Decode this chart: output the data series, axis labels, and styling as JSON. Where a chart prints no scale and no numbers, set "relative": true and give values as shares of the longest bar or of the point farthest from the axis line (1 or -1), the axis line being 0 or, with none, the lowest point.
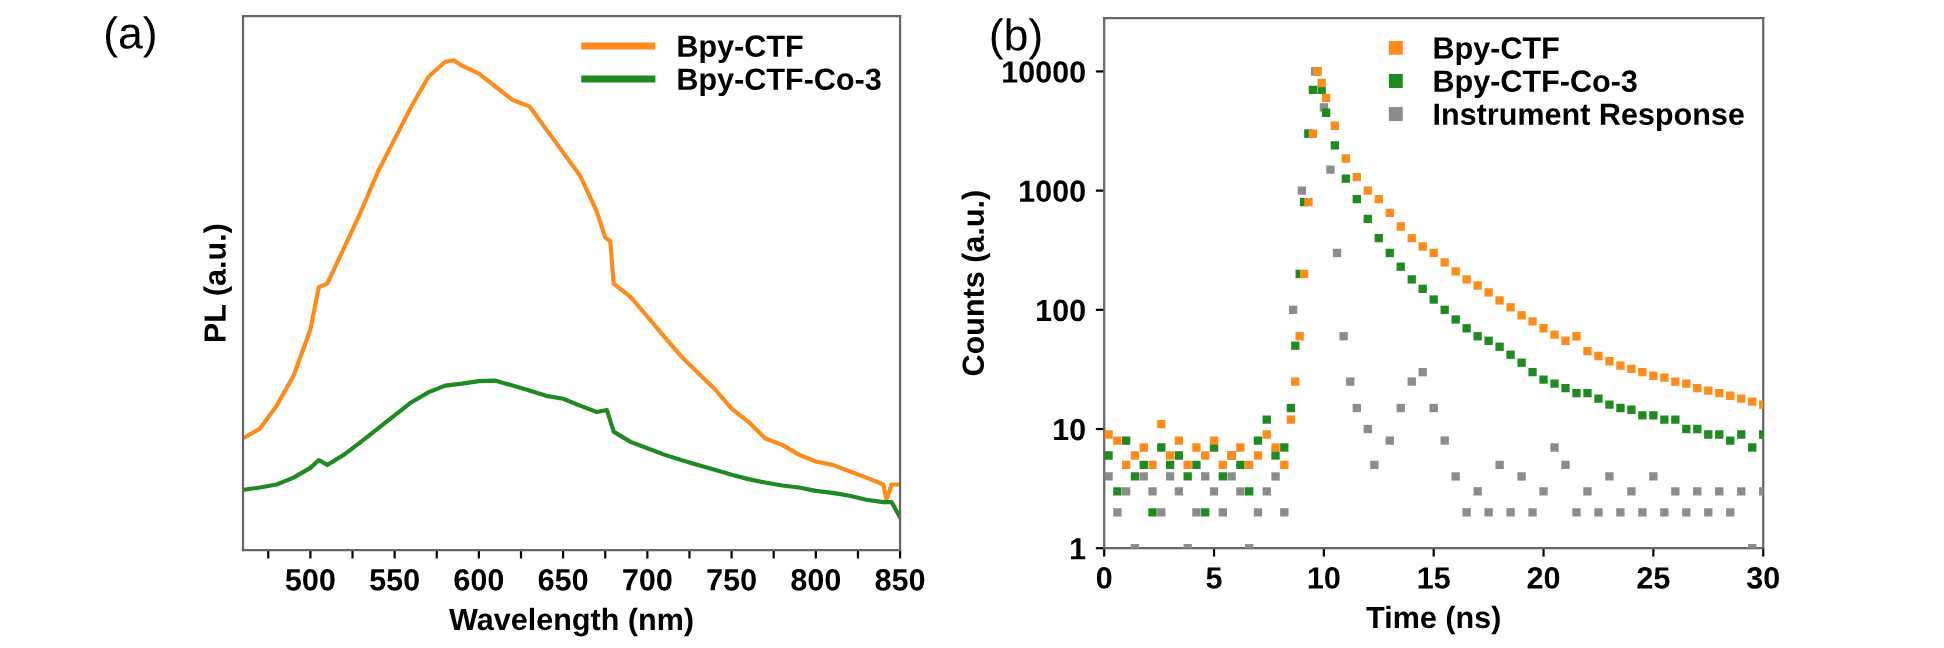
{
  "chart_data": [
    {
      "type": "line",
      "relative": true,
      "xlabel": "Wavelength (nm)",
      "ylabel": "PL (a.u.)",
      "annotations": [
        "(a)"
      ],
      "legend": "top right",
      "tick_labels": "x",
      "grid": false,
      "xlim": [
        460,
        850
      ],
      "xticks": [
        {
          "value": 475,
          "label": null
        },
        500,
        {
          "value": 525,
          "label": null
        },
        550,
        {
          "value": 575,
          "label": null
        },
        600,
        {
          "value": 625,
          "label": null
        },
        650,
        {
          "value": 675,
          "label": null
        },
        700,
        {
          "value": 725,
          "label": null
        },
        750,
        {
          "value": 775,
          "label": null
        },
        800,
        {
          "value": 825,
          "label": null
        },
        850
      ],
      "series": [
        {
          "name": "Bpy-CTF",
          "color": "#ff8c1a",
          "x": [
            460,
            470,
            480,
            490,
            500,
            505,
            510,
            520,
            530,
            540,
            550,
            560,
            570,
            580,
            585,
            590,
            600,
            610,
            620,
            630,
            640,
            650,
            660,
            670,
            675,
            678,
            680,
            690,
            700,
            710,
            720,
            730,
            740,
            750,
            760,
            770,
            780,
            790,
            800,
            810,
            820,
            830,
            840,
            842,
            845,
            850
          ],
          "values": [
            0.228,
            0.248,
            0.295,
            0.356,
            0.45,
            0.537,
            0.544,
            0.617,
            0.691,
            0.772,
            0.839,
            0.906,
            0.966,
            0.997,
            1.0,
            0.989,
            0.973,
            0.946,
            0.919,
            0.906,
            0.859,
            0.812,
            0.765,
            0.691,
            0.638,
            0.631,
            0.544,
            0.517,
            0.477,
            0.436,
            0.396,
            0.362,
            0.329,
            0.289,
            0.262,
            0.228,
            0.215,
            0.195,
            0.181,
            0.174,
            0.161,
            0.148,
            0.134,
            0.103,
            0.134,
            0.134
          ]
        },
        {
          "name": "Bpy-CTF-Co-3",
          "color": "#1f8a1f",
          "x": [
            460,
            470,
            480,
            490,
            500,
            505,
            510,
            520,
            530,
            540,
            550,
            560,
            570,
            580,
            590,
            600,
            610,
            620,
            630,
            640,
            650,
            660,
            670,
            676,
            680,
            690,
            700,
            710,
            720,
            730,
            740,
            750,
            760,
            770,
            780,
            790,
            800,
            810,
            820,
            830,
            840,
            845,
            850
          ],
          "values": [
            0.123,
            0.128,
            0.134,
            0.148,
            0.168,
            0.184,
            0.174,
            0.195,
            0.221,
            0.248,
            0.275,
            0.302,
            0.322,
            0.336,
            0.34,
            0.345,
            0.346,
            0.336,
            0.326,
            0.315,
            0.309,
            0.295,
            0.282,
            0.286,
            0.242,
            0.221,
            0.208,
            0.195,
            0.184,
            0.174,
            0.164,
            0.154,
            0.145,
            0.138,
            0.132,
            0.128,
            0.121,
            0.117,
            0.111,
            0.103,
            0.098,
            0.098,
            0.067
          ]
        }
      ]
    },
    {
      "type": "scatter",
      "xlabel": "Time (ns)",
      "ylabel": "Counts (a.u.)",
      "annotations": [
        "(b)"
      ],
      "legend": "top right",
      "log": "y",
      "marker": "square",
      "grid": false,
      "xlim": [
        0,
        30
      ],
      "xticks": [
        0,
        5,
        10,
        15,
        20,
        25,
        30
      ],
      "ylim": [
        1,
        28000
      ],
      "yticks": [
        1,
        10,
        100,
        1000,
        10000
      ],
      "series": [
        {
          "name": "Bpy-CTF",
          "color": "#ff8c1a",
          "x": [
            0.2,
            0.6,
            1.0,
            1.4,
            1.8,
            2.2,
            2.6,
            3.0,
            3.4,
            3.8,
            4.2,
            4.6,
            5.0,
            5.4,
            5.8,
            6.2,
            6.6,
            7.0,
            7.4,
            7.8,
            8.2,
            8.5,
            8.7,
            8.9,
            9.1,
            9.3,
            9.5,
            9.7,
            9.9,
            10.1,
            10.5,
            11,
            11.5,
            12,
            12.5,
            13,
            13.5,
            14,
            14.5,
            15,
            15.5,
            16,
            16.5,
            17,
            17.5,
            18,
            18.5,
            19,
            19.5,
            20,
            20.5,
            21,
            21.5,
            22,
            22.5,
            23,
            23.5,
            24,
            24.5,
            25,
            25.5,
            26,
            26.5,
            27,
            27.5,
            28,
            28.5,
            29,
            29.5,
            30
          ],
          "values": [
            9,
            8,
            5,
            6,
            7,
            5,
            11,
            6,
            8,
            5,
            7,
            6,
            8,
            5,
            6,
            7,
            5,
            6,
            9,
            7,
            5,
            12,
            25,
            60,
            200,
            800,
            3000,
            10000,
            8000,
            6000,
            3500,
            1860,
            1300,
            1000,
            850,
            650,
            500,
            400,
            340,
            300,
            250,
            210,
            180,
            160,
            140,
            120,
            105,
            90,
            80,
            70,
            62,
            55,
            60,
            45,
            41,
            37,
            34,
            32,
            30,
            28,
            27,
            25,
            24,
            22,
            21,
            20,
            19,
            18,
            17,
            16
          ]
        },
        {
          "name": "Bpy-CTF-Co-3",
          "color": "#1f8a1f",
          "x": [
            0.2,
            0.6,
            1.0,
            1.4,
            1.8,
            2.2,
            2.6,
            3.0,
            3.4,
            3.8,
            4.2,
            4.6,
            5.0,
            5.4,
            5.8,
            6.2,
            6.6,
            7.0,
            7.4,
            7.8,
            8.2,
            8.5,
            8.7,
            8.9,
            9.1,
            9.3,
            9.5,
            9.7,
            9.9,
            10.1,
            10.5,
            11,
            11.5,
            12,
            12.5,
            13,
            13.5,
            14,
            14.5,
            15,
            15.5,
            16,
            16.5,
            17,
            17.5,
            18,
            18.5,
            19,
            19.5,
            20,
            20.5,
            21,
            21.5,
            22,
            22.5,
            23,
            23.5,
            24,
            24.5,
            25,
            25.5,
            26,
            26.5,
            27,
            27.5,
            28,
            28.5,
            29,
            29.5,
            30
          ],
          "values": [
            6,
            3,
            8,
            4,
            5,
            2,
            7,
            5,
            6,
            4,
            5,
            2,
            7,
            4,
            6,
            5,
            3,
            8,
            12,
            6,
            7,
            15,
            50,
            200,
            800,
            3000,
            7000,
            10000,
            7000,
            4500,
            2400,
            1260,
            850,
            580,
            400,
            300,
            230,
            180,
            150,
            122,
            100,
            83,
            70,
            60,
            55,
            49,
            42,
            36,
            30,
            26,
            24,
            22,
            20,
            20,
            18,
            16,
            15,
            14.5,
            13,
            13,
            12,
            12,
            10,
            10,
            9,
            9,
            8,
            9,
            7,
            9
          ]
        },
        {
          "name": "Instrument Response",
          "color": "#8c8c8c",
          "x": [
            0.2,
            0.6,
            1.0,
            1.4,
            1.8,
            2.2,
            2.6,
            3.0,
            3.4,
            3.8,
            4.2,
            4.6,
            5.0,
            5.4,
            5.8,
            6.2,
            6.6,
            7.0,
            7.4,
            7.8,
            8.2,
            8.6,
            9.0,
            9.3,
            9.6,
            10.0,
            10.3,
            10.6,
            10.9,
            11.2,
            11.5,
            12,
            12.3,
            13,
            13.5,
            14,
            14.5,
            15,
            15.5,
            16,
            16.5,
            17,
            17.5,
            18,
            18.5,
            19,
            19.5,
            20,
            20.5,
            21,
            21.5,
            22,
            22.5,
            23,
            23.5,
            24,
            24.5,
            25,
            25.5,
            26,
            26.5,
            27,
            27.5,
            28,
            28.5,
            29,
            29.5,
            30
          ],
          "values": [
            4,
            2,
            3,
            1,
            4,
            3,
            2,
            4,
            3,
            1,
            2,
            4,
            3,
            2,
            4,
            3,
            1,
            2,
            3,
            4,
            2,
            100,
            1000,
            3000,
            10000,
            5000,
            1500,
            300,
            60,
            25,
            15,
            10,
            5,
            8,
            15,
            25,
            30,
            15,
            8,
            4,
            2,
            3,
            2,
            5,
            2,
            4,
            2,
            3,
            7,
            5,
            2,
            3,
            2,
            4,
            2,
            3,
            2,
            4,
            2,
            3,
            2,
            3,
            2,
            3,
            2,
            3,
            1,
            3
          ]
        }
      ]
    }
  ]
}
